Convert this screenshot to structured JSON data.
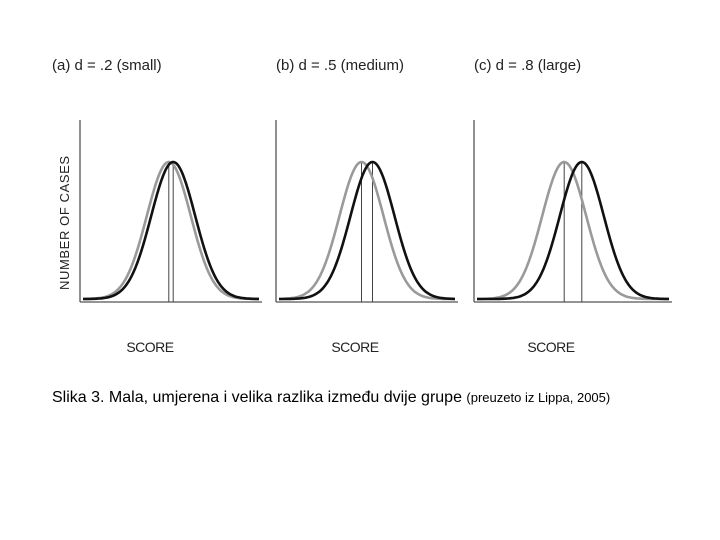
{
  "chart_data": {
    "type": "line",
    "ylabel": "NUMBER OF CASES",
    "xlabel": "SCORE",
    "panels": [
      {
        "title": "(a) d = .2 (small)",
        "d": 0.2
      },
      {
        "title": "(b) d = .5 (medium)",
        "d": 0.5
      },
      {
        "title": "(c) d = .8 (large)",
        "d": 0.8
      }
    ],
    "colors": {
      "group1": "#9a9a9a",
      "group2": "#111111",
      "axis": "#555555"
    }
  },
  "caption": {
    "main": "Slika 3. Mala, umjerena i velika razlika između dvije grupe ",
    "source": "(preuzeto iz Lippa, 2005)"
  }
}
